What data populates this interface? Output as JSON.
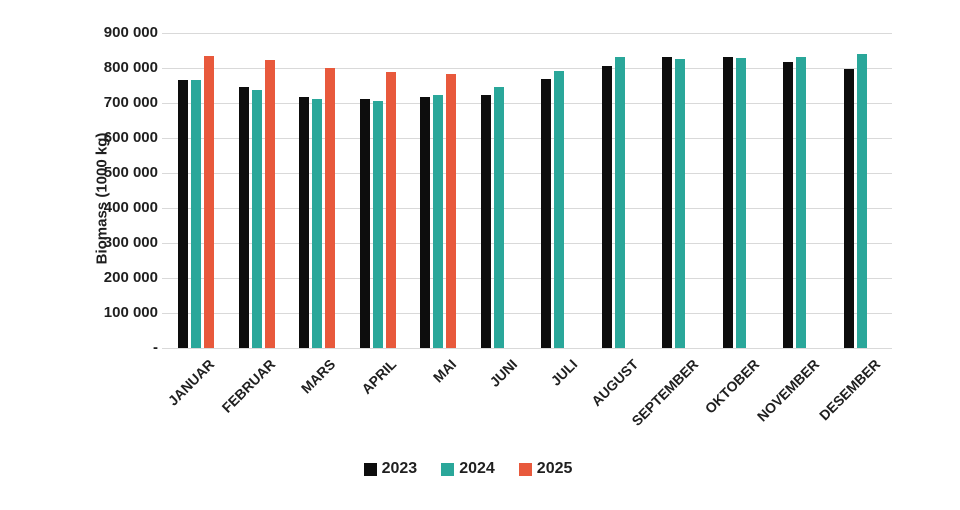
{
  "chart_data": {
    "type": "bar",
    "title": "",
    "xlabel": "",
    "ylabel": "Biomass  (1000 kg)",
    "categories": [
      "JANUAR",
      "FEBRUAR",
      "MARS",
      "APRIL",
      "MAI",
      "JUNI",
      "JULI",
      "AUGUST",
      "SEPTEMBER",
      "OKTOBER",
      "NOVEMBER",
      "DESEMBER"
    ],
    "series": [
      {
        "name": "2023",
        "color": "#0d0d0d",
        "values": [
          765000,
          745000,
          716000,
          711000,
          716000,
          722000,
          769000,
          805000,
          830000,
          830000,
          817000,
          796000
        ]
      },
      {
        "name": "2024",
        "color": "#2aa79a",
        "values": [
          766000,
          736000,
          710000,
          707000,
          724000,
          745000,
          791000,
          832000,
          827000,
          829000,
          832000,
          840000
        ]
      },
      {
        "name": "2025",
        "color": "#e8593c",
        "values": [
          835000,
          822000,
          801000,
          789000,
          784000,
          null,
          null,
          null,
          null,
          null,
          null,
          null
        ]
      }
    ],
    "ylim": [
      0,
      900000
    ],
    "ytick_interval": 100000,
    "ytick_labels": [
      "900 000",
      "800 000",
      "700 000",
      "600 000",
      "500 000",
      "400 000",
      "300 000",
      "200 000",
      "100 000",
      "-"
    ],
    "grid": "horizontal",
    "gridline_color": "#d9d9d9",
    "legend_position": "bottom"
  },
  "legend": {
    "items": [
      {
        "label": "2023"
      },
      {
        "label": "2024"
      },
      {
        "label": "2025"
      }
    ]
  }
}
